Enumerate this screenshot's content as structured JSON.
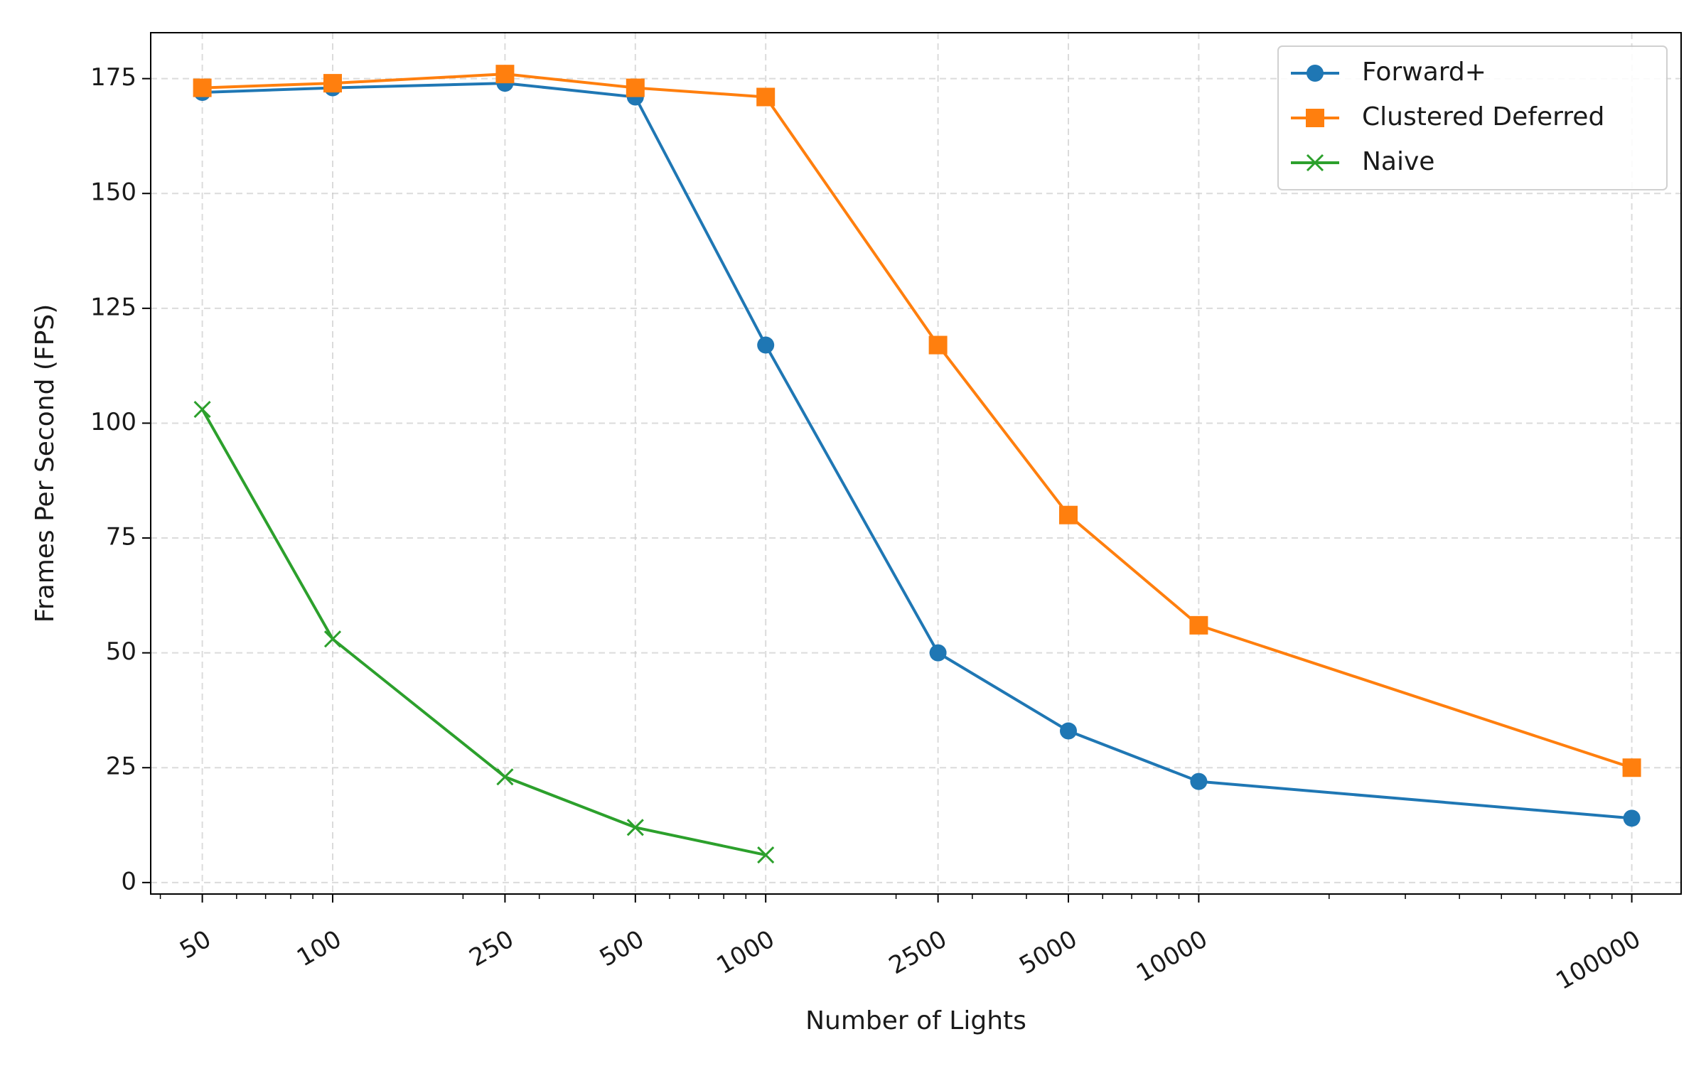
{
  "chart_data": {
    "type": "line",
    "title": "",
    "xlabel": "Number of Lights",
    "ylabel": "Frames Per Second (FPS)",
    "xscale": "log",
    "x_ticks": [
      50,
      100,
      250,
      500,
      1000,
      2500,
      5000,
      10000,
      100000
    ],
    "x_tick_labels": [
      "50",
      "100",
      "250",
      "500",
      "1000",
      "2500",
      "5000",
      "10000",
      "100000"
    ],
    "y_ticks": [
      0,
      25,
      50,
      75,
      100,
      125,
      150,
      175
    ],
    "y_tick_labels": [
      "0",
      "25",
      "50",
      "75",
      "100",
      "125",
      "150",
      "175"
    ],
    "ylim": [
      -2.5,
      185
    ],
    "grid": true,
    "legend_position": "top-right",
    "series": [
      {
        "name": "Forward+",
        "color": "#1f77b4",
        "marker": "circle",
        "x": [
          50,
          100,
          250,
          500,
          1000,
          2500,
          5000,
          10000,
          100000
        ],
        "values": [
          172,
          173,
          174,
          171,
          117,
          50,
          33,
          22,
          14
        ]
      },
      {
        "name": "Clustered Deferred",
        "color": "#ff7f0e",
        "marker": "square",
        "x": [
          50,
          100,
          250,
          500,
          1000,
          2500,
          5000,
          10000,
          100000
        ],
        "values": [
          173,
          174,
          176,
          173,
          171,
          117,
          80,
          56,
          25
        ]
      },
      {
        "name": "Naive",
        "color": "#2ca02c",
        "marker": "x",
        "x": [
          50,
          100,
          250,
          500,
          1000
        ],
        "values": [
          103,
          53,
          23,
          12,
          6
        ]
      }
    ]
  }
}
